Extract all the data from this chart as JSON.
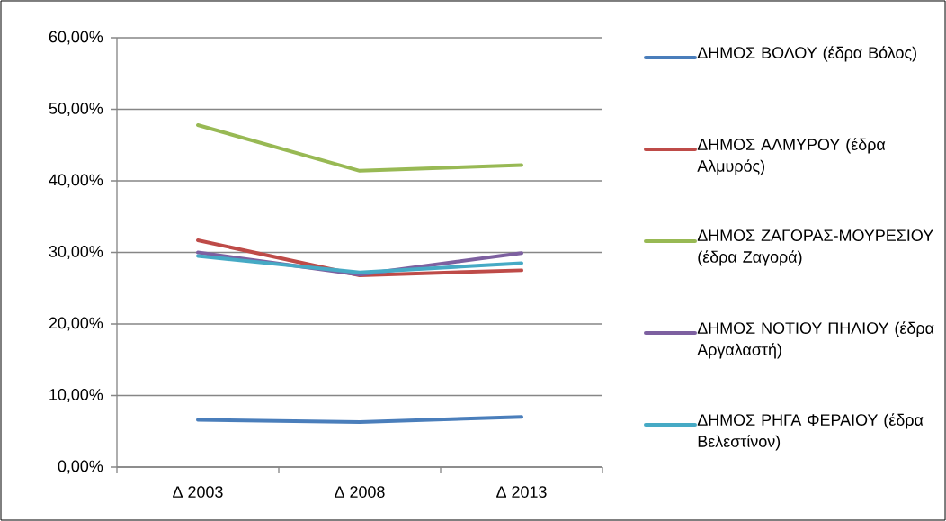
{
  "chart_data": {
    "type": "line",
    "categories": [
      "Δ 2003",
      "Δ 2008",
      "Δ 2013"
    ],
    "series": [
      {
        "name": "ΔΗΜΟΣ ΒΟΛΟΥ (έδρα Βόλος)",
        "color": "#4a7ebb",
        "values": [
          6.6,
          6.3,
          7.0
        ]
      },
      {
        "name": "ΔΗΜΟΣ ΑΛΜΥΡΟΥ (έδρα Αλμυρός)",
        "color": "#be4b48",
        "values": [
          31.7,
          26.8,
          27.5
        ]
      },
      {
        "name": "ΔΗΜΟΣ ΖΑΓΟΡΑΣ-ΜΟΥΡΕΣΙΟΥ (έδρα Ζαγορά)",
        "color": "#98b954",
        "values": [
          47.8,
          41.4,
          42.2
        ]
      },
      {
        "name": "ΔΗΜΟΣ ΝΟΤΙΟΥ ΠΗΛΙΟΥ (έδρα Αργαλαστή)",
        "color": "#7d60a0",
        "values": [
          30.0,
          26.9,
          29.9
        ]
      },
      {
        "name": "ΔΗΜΟΣ ΡΗΓΑ ΦΕΡΑΙΟΥ (έδρα Βελεστίνον)",
        "color": "#46aac5",
        "values": [
          29.5,
          27.2,
          28.5
        ]
      }
    ],
    "ylim": [
      0,
      60
    ],
    "yticks": [
      {
        "value": 0,
        "label": "0,00%"
      },
      {
        "value": 10,
        "label": "10,00%"
      },
      {
        "value": 20,
        "label": "20,00%"
      },
      {
        "value": 30,
        "label": "30,00%"
      },
      {
        "value": 40,
        "label": "40,00%"
      },
      {
        "value": 50,
        "label": "50,00%"
      },
      {
        "value": 60,
        "label": "60,00%"
      }
    ],
    "grid": "y",
    "legend": "right",
    "marker": "none",
    "line_style": "solid"
  }
}
